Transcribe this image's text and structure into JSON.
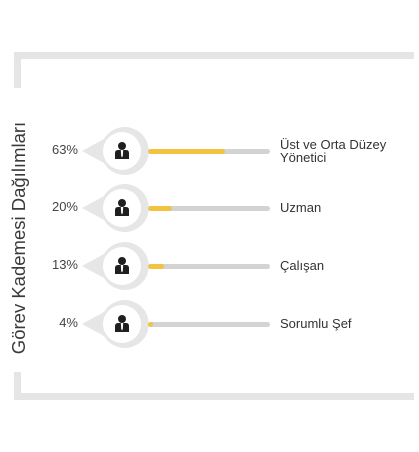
{
  "title": "Görev Kademesi Dağılımları",
  "colors": {
    "frame": "#e5e5e5",
    "pin": "#e6e6e6",
    "track": "#d3d3d3",
    "fill": "#f2c240",
    "icon": "#1f1f1f"
  },
  "chart_data": {
    "type": "bar",
    "orientation": "horizontal",
    "categories": [
      "Üst ve Orta Düzey Yönetici",
      "Uzman",
      "Çalışan",
      "Sorumlu Şef"
    ],
    "values": [
      63,
      20,
      13,
      4
    ],
    "value_labels": [
      "63%",
      "20%",
      "13%",
      "4%"
    ],
    "unit": "%",
    "xlim": [
      0,
      100
    ],
    "title": "Görev Kademesi Dağılımları"
  },
  "rows": [
    {
      "pct": "63%",
      "label_line1": "Üst ve Orta Düzey",
      "label_line2": "Yönetici",
      "value": 63,
      "icon": "person-icon"
    },
    {
      "pct": "20%",
      "label_line1": "Uzman",
      "label_line2": "",
      "value": 20,
      "icon": "person-icon"
    },
    {
      "pct": "13%",
      "label_line1": "Çalışan",
      "label_line2": "",
      "value": 13,
      "icon": "person-icon"
    },
    {
      "pct": "4%",
      "label_line1": "Sorumlu Şef",
      "label_line2": "",
      "value": 4,
      "icon": "person-icon"
    }
  ]
}
